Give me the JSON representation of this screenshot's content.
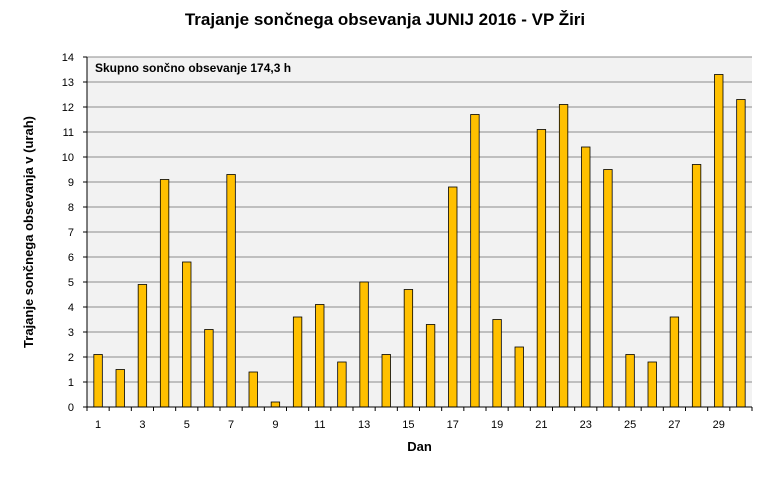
{
  "chart_data": {
    "type": "bar",
    "title": "Trajanje  sončnega obsevanja  JUNIJ 2016 - VP Žiri",
    "xlabel": "Dan",
    "ylabel": "Trajanje  sončnega obsevanja  v (urah)",
    "annotation": "Skupno sončno obsevanje  174,3 h",
    "ylim": [
      0,
      14
    ],
    "yticks": [
      "0",
      "1",
      "2",
      "3",
      "4",
      "5",
      "6",
      "7",
      "8",
      "9",
      "10",
      "11",
      "12",
      "13",
      "14"
    ],
    "categories": [
      "1",
      "2",
      "3",
      "4",
      "5",
      "6",
      "7",
      "8",
      "9",
      "10",
      "11",
      "12",
      "13",
      "14",
      "15",
      "16",
      "17",
      "18",
      "19",
      "20",
      "21",
      "22",
      "23",
      "24",
      "25",
      "26",
      "27",
      "28",
      "29",
      "30"
    ],
    "x_tick_labels": [
      "1",
      "",
      "3",
      "",
      "5",
      "",
      "7",
      "",
      "9",
      "",
      "11",
      "",
      "13",
      "",
      "15",
      "",
      "17",
      "",
      "19",
      "",
      "21",
      "",
      "23",
      "",
      "25",
      "",
      "27",
      "",
      "29",
      ""
    ],
    "values": [
      2.1,
      1.5,
      4.9,
      9.1,
      5.8,
      3.1,
      9.3,
      1.4,
      0.2,
      3.6,
      4.1,
      1.8,
      5.0,
      2.1,
      4.7,
      3.3,
      8.8,
      11.7,
      3.5,
      2.4,
      11.1,
      12.1,
      10.4,
      9.5,
      2.1,
      1.8,
      3.6,
      9.7,
      13.3,
      12.3
    ],
    "bar_color": "#FFC000",
    "bar_stroke": "#000000",
    "plot_background": "#F2F2F2",
    "grid": true,
    "legend": "none"
  }
}
